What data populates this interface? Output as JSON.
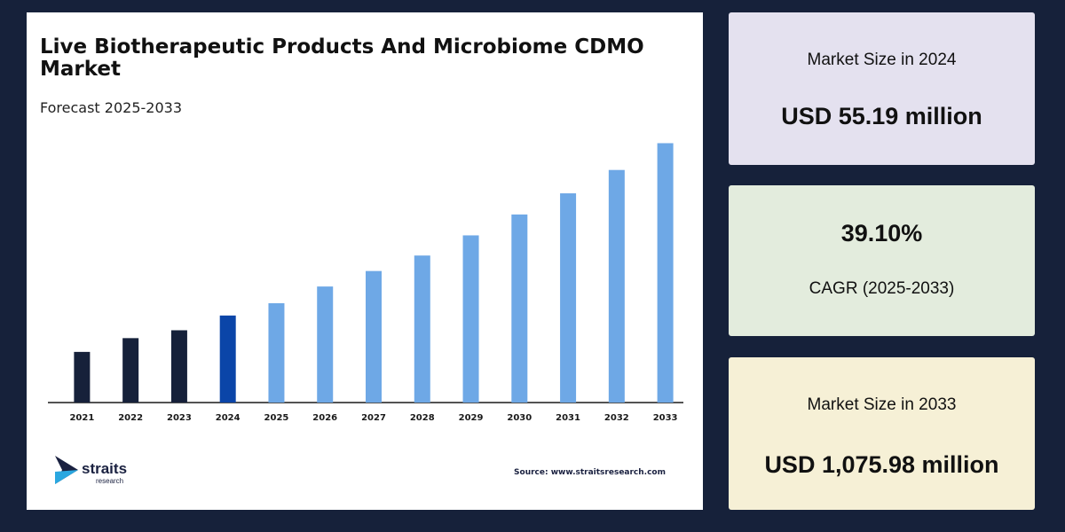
{
  "chart": {
    "title": "Live Biotherapeutic Products And Microbiome CDMO Market",
    "subtitle": "Forecast 2025-2033",
    "source": "Source: www.straitsresearch.com",
    "logo": {
      "name": "straits",
      "sub": "research"
    }
  },
  "chart_data": {
    "type": "bar",
    "title": "Live Biotherapeutic Products And Microbiome CDMO Market",
    "subtitle": "Forecast 2025-2033",
    "categories": [
      "2021",
      "2022",
      "2023",
      "2024",
      "2025",
      "2026",
      "2027",
      "2028",
      "2029",
      "2030",
      "2031",
      "2032",
      "2033"
    ],
    "values": [
      20.6,
      26.2,
      29.4,
      35.4,
      40.4,
      47.2,
      53.5,
      59.8,
      68.0,
      76.5,
      85.1,
      94.6,
      105.5
    ],
    "value_scale": "relative (no y-axis printed)",
    "bar_colors": {
      "historical": "#16213a",
      "base_year": "#0b45a8",
      "forecast": "#6ea8e6"
    },
    "base_year_index": 3,
    "grid": false,
    "legend": "none",
    "ylim": [
      0,
      110
    ]
  },
  "cards": [
    {
      "label": "Market Size in 2024",
      "value": "USD 55.19 million"
    },
    {
      "value": "39.10%",
      "label": "CAGR (2025-2033)"
    },
    {
      "label": "Market Size in 2033",
      "value": "USD 1,075.98 million"
    }
  ]
}
